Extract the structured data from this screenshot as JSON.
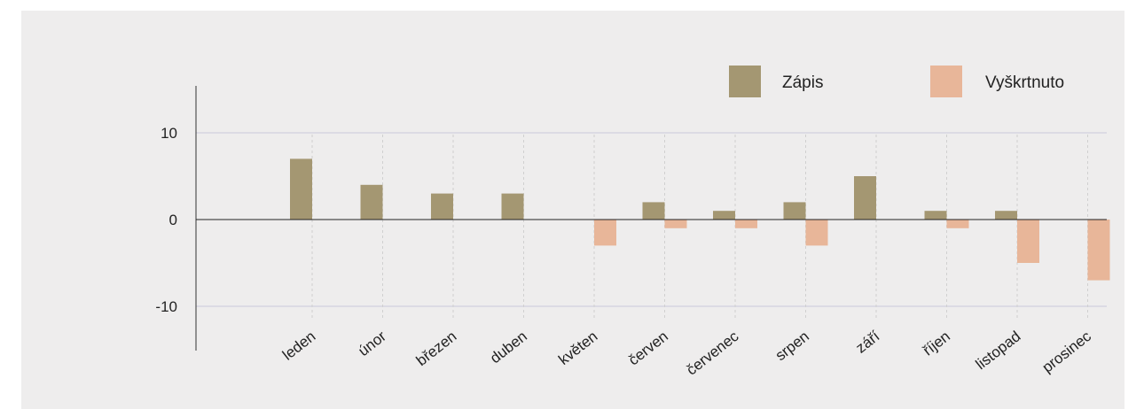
{
  "chart_data": {
    "type": "bar",
    "categories": [
      "leden",
      "únor",
      "březen",
      "duben",
      "květen",
      "červen",
      "červenec",
      "srpen",
      "září",
      "říjen",
      "listopad",
      "prosinec"
    ],
    "series": [
      {
        "name": "Zápis",
        "values": [
          7,
          4,
          3,
          3,
          0,
          2,
          1,
          2,
          5,
          1,
          1,
          0
        ],
        "color": "#a49772"
      },
      {
        "name": "Vyškrtnuto",
        "values": [
          0,
          0,
          0,
          0,
          -3,
          -1,
          -1,
          -3,
          0,
          -1,
          -5,
          -7
        ],
        "color": "#e8b699"
      }
    ],
    "yticks": [
      "10",
      "0",
      "-10"
    ],
    "ytick_values": [
      10,
      0,
      -10
    ],
    "ylim": [
      -15,
      15
    ],
    "grid": true,
    "legend": "top-right"
  }
}
